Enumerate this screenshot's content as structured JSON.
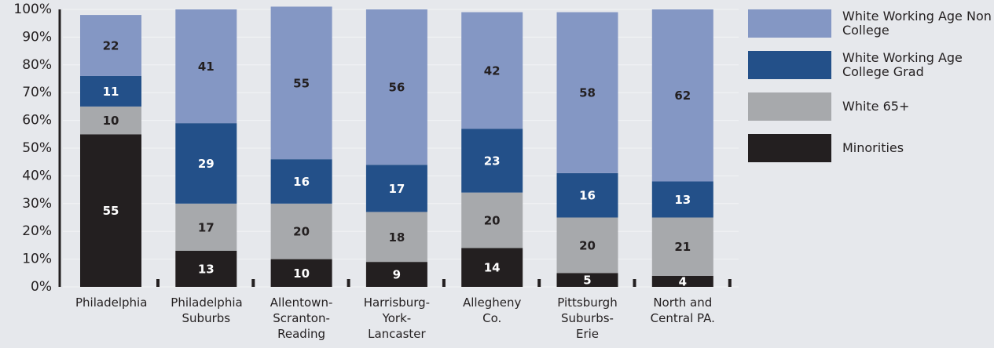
{
  "chart_data": {
    "type": "stacked_bar",
    "categories": [
      "Philadelphia",
      "Philadelphia Suburbs",
      "Allentown-Scranton-Reading",
      "Harrisburg-York-Lancaster",
      "Allegheny Co.",
      "Pittsburgh Suburbs-Erie",
      "North and Central PA."
    ],
    "series": [
      {
        "name": "Minorities",
        "color": "#231f20",
        "label_color": "#ffffff",
        "values": [
          55,
          13,
          10,
          9,
          14,
          5,
          4
        ]
      },
      {
        "name": "White 65+",
        "color": "#a7a9ac",
        "label_color": "#231f20",
        "values": [
          10,
          17,
          20,
          18,
          20,
          20,
          21
        ]
      },
      {
        "name": "White Working Age College Grad",
        "color": "#235089",
        "label_color": "#ffffff",
        "values": [
          11,
          29,
          16,
          17,
          23,
          16,
          13
        ]
      },
      {
        "name": "White Working Age Non College",
        "color": "#8497c4",
        "label_color": "#231f20",
        "values": [
          22,
          41,
          55,
          56,
          42,
          58,
          62
        ]
      }
    ],
    "ylim": [
      0,
      100
    ],
    "yticks": [
      {
        "value": 0,
        "label": "0%"
      },
      {
        "value": 10,
        "label": "10%"
      },
      {
        "value": 20,
        "label": "20%"
      },
      {
        "value": 30,
        "label": "30%"
      },
      {
        "value": 40,
        "label": "40%"
      },
      {
        "value": 50,
        "label": "50%"
      },
      {
        "value": 60,
        "label": "60%"
      },
      {
        "value": 70,
        "label": "70%"
      },
      {
        "value": 80,
        "label": "80%"
      },
      {
        "value": 90,
        "label": "90%"
      },
      {
        "value": 100,
        "label": "100%"
      }
    ],
    "grid": true,
    "legend": "right"
  }
}
